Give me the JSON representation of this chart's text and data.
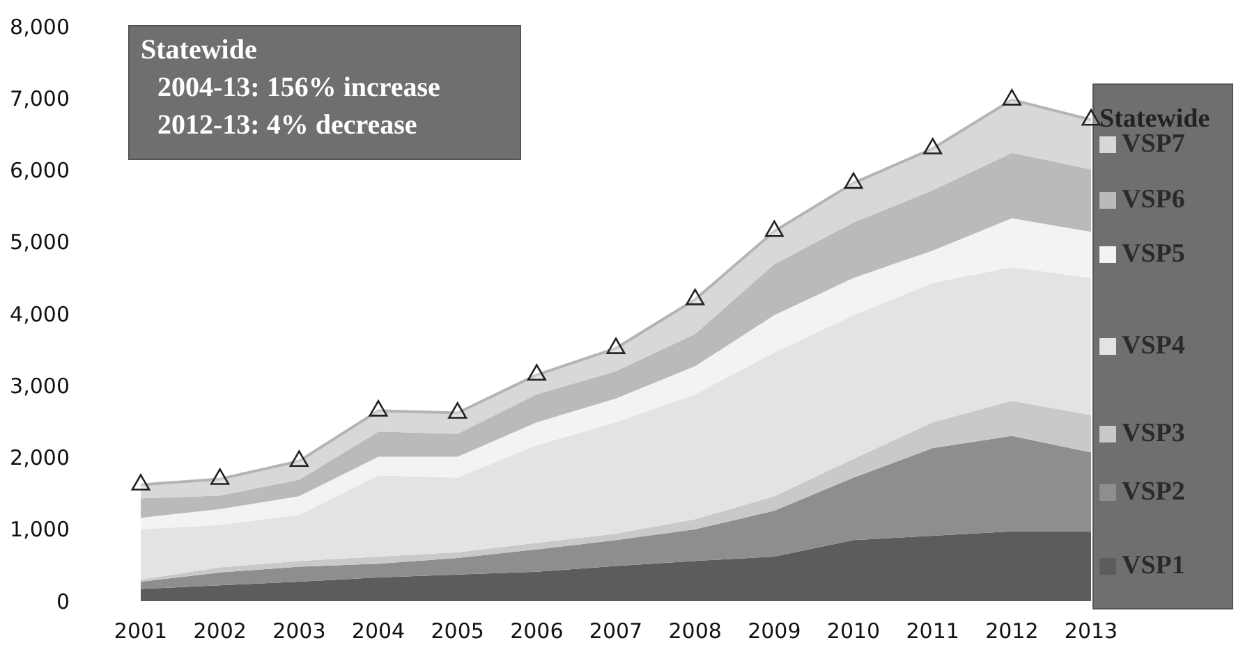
{
  "chart_data": {
    "type": "area",
    "stacked": true,
    "categories": [
      "2001",
      "2002",
      "2003",
      "2004",
      "2005",
      "2006",
      "2007",
      "2008",
      "2009",
      "2010",
      "2011",
      "2012",
      "2013"
    ],
    "ylim": [
      0,
      8000
    ],
    "yticks": [
      {
        "value": 0,
        "label": "0"
      },
      {
        "value": 1000,
        "label": "1,000"
      },
      {
        "value": 2000,
        "label": "2,000"
      },
      {
        "value": 3000,
        "label": "3,000"
      },
      {
        "value": 4000,
        "label": "4,000"
      },
      {
        "value": 5000,
        "label": "5,000"
      },
      {
        "value": 6000,
        "label": "6,000"
      },
      {
        "value": 7000,
        "label": "7,000"
      },
      {
        "value": 8000,
        "label": "8,000"
      }
    ],
    "grid": false,
    "legend": "right",
    "annotations": [
      "Statewide",
      "2004-13: 156% increase",
      "2012-13: 4% decrease"
    ],
    "series": [
      {
        "name": "VSP1",
        "color": "#5c5c5c",
        "values": [
          170,
          220,
          270,
          330,
          370,
          410,
          490,
          560,
          620,
          850,
          910,
          970,
          970
        ]
      },
      {
        "name": "VSP2",
        "color": "#8e8e8e",
        "values": [
          100,
          180,
          210,
          190,
          230,
          310,
          360,
          440,
          640,
          870,
          1220,
          1330,
          1100
        ]
      },
      {
        "name": "VSP3",
        "color": "#c9c9c9",
        "values": [
          30,
          70,
          80,
          100,
          80,
          90,
          90,
          140,
          200,
          260,
          360,
          490,
          520
        ]
      },
      {
        "name": "VSP4",
        "color": "#e3e3e3",
        "values": [
          700,
          590,
          640,
          1130,
          1040,
          1360,
          1550,
          1740,
          2000,
          2000,
          1940,
          1860,
          1910
        ]
      },
      {
        "name": "VSP5",
        "color": "#f3f3f3",
        "values": [
          160,
          220,
          260,
          260,
          290,
          320,
          330,
          390,
          520,
          520,
          450,
          680,
          640
        ]
      },
      {
        "name": "VSP6",
        "color": "#bababa",
        "values": [
          270,
          190,
          230,
          350,
          320,
          390,
          380,
          450,
          710,
          770,
          840,
          910,
          870
        ]
      },
      {
        "name": "VSP7",
        "color": "#d8d8d8",
        "values": [
          190,
          230,
          260,
          290,
          290,
          270,
          320,
          480,
          460,
          550,
          580,
          740,
          690
        ]
      },
      {
        "name": "Statewide",
        "type": "scatter",
        "color": "#222222",
        "marker": "triangle",
        "values": [
          1620,
          1700,
          1950,
          2650,
          2620,
          3150,
          3520,
          4200,
          5150,
          5820,
          6300,
          6980,
          6700
        ]
      }
    ]
  }
}
